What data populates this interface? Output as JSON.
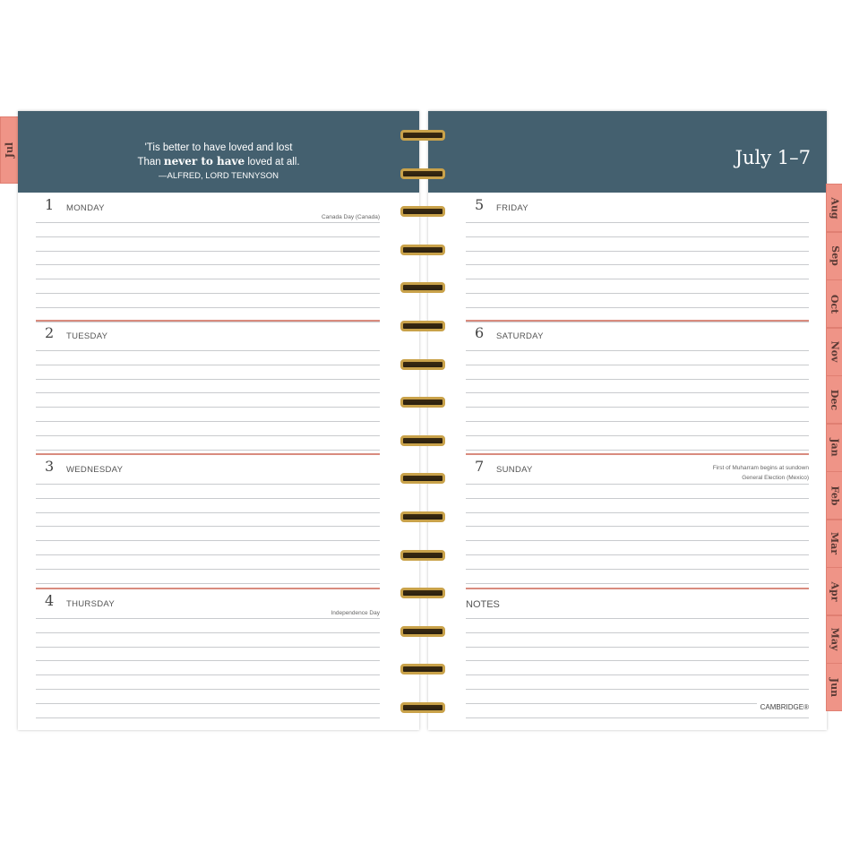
{
  "quote": {
    "line1": "'Tis better to have loved and lost",
    "line2_pre": "Than ",
    "line2_bold": "never to have",
    "line2_post": " loved at all.",
    "author": "—ALFRED, LORD TENNYSON"
  },
  "week_title": "July 1–7",
  "current_tab": "Jul",
  "tabs": [
    "Aug",
    "Sep",
    "Oct",
    "Nov",
    "Dec",
    "Jan",
    "Feb",
    "Mar",
    "Apr",
    "May",
    "Jun"
  ],
  "left_days": [
    {
      "num": "1",
      "name": "MONDAY",
      "holidays": [
        "Canada Day (Canada)"
      ]
    },
    {
      "num": "2",
      "name": "TUESDAY",
      "holidays": []
    },
    {
      "num": "3",
      "name": "WEDNESDAY",
      "holidays": []
    },
    {
      "num": "4",
      "name": "THURSDAY",
      "holidays": [
        "Independence Day"
      ]
    }
  ],
  "right_days": [
    {
      "num": "5",
      "name": "FRIDAY",
      "holidays": []
    },
    {
      "num": "6",
      "name": "SATURDAY",
      "holidays": []
    },
    {
      "num": "7",
      "name": "SUNDAY",
      "holidays": [
        "First of Muharram begins at sundown",
        "General Election (Mexico)"
      ]
    }
  ],
  "notes_label": "NOTES",
  "brand": "CAMBRIDGE®",
  "colors": {
    "header": "#44606f",
    "tab": "#ef9487",
    "divider": "#d98b7e",
    "ring": "#c9a24a"
  }
}
